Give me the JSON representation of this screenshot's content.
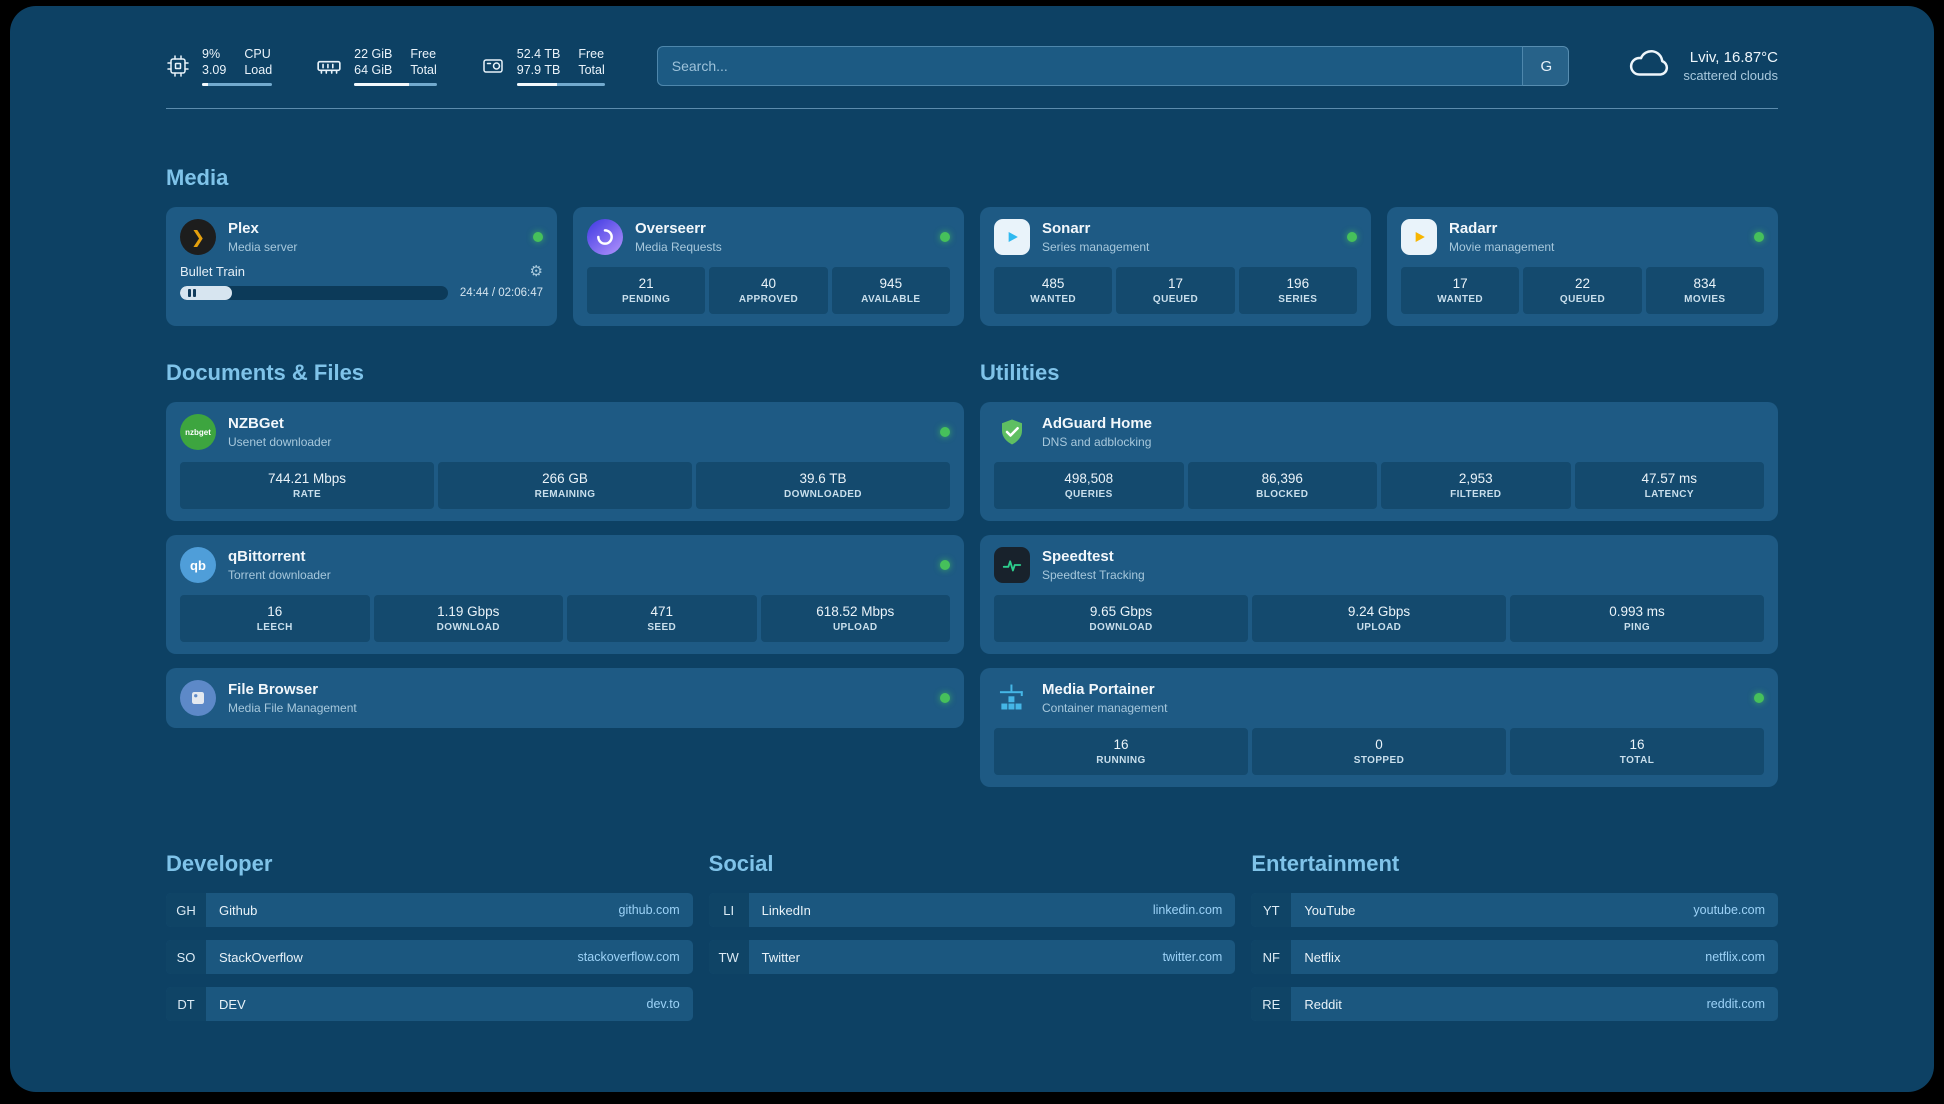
{
  "icons": {
    "gear": "⚙",
    "plex_glyph": "❯"
  },
  "topbar": {
    "cpu": {
      "percent": "9%",
      "load": "3.09",
      "label_top": "CPU",
      "label_bottom": "Load",
      "bar": "9%"
    },
    "ram": {
      "free": "22 GiB",
      "total": "64 GiB",
      "label_top": "Free",
      "label_bottom": "Total",
      "bar": "66%"
    },
    "disk": {
      "free": "52.4 TB",
      "total": "97.9 TB",
      "label_top": "Free",
      "label_bottom": "Total",
      "bar": "46%"
    },
    "search": {
      "placeholder": "Search...",
      "engine_label": "G"
    },
    "weather": {
      "location": "Lviv, 16.87°C",
      "description": "scattered clouds"
    }
  },
  "sections": {
    "media": "Media",
    "documents": "Documents & Files",
    "utilities": "Utilities",
    "developer": "Developer",
    "social": "Social",
    "entertainment": "Entertainment"
  },
  "media": {
    "plex": {
      "name": "Plex",
      "subtitle": "Media server",
      "now_playing": "Bullet Train",
      "time": "24:44 / 02:06:47",
      "progress": "19.5%"
    },
    "overseerr": {
      "name": "Overseerr",
      "subtitle": "Media Requests",
      "stats": [
        {
          "value": "21",
          "label": "PENDING"
        },
        {
          "value": "40",
          "label": "APPROVED"
        },
        {
          "value": "945",
          "label": "AVAILABLE"
        }
      ]
    },
    "sonarr": {
      "name": "Sonarr",
      "subtitle": "Series management",
      "stats": [
        {
          "value": "485",
          "label": "WANTED"
        },
        {
          "value": "17",
          "label": "QUEUED"
        },
        {
          "value": "196",
          "label": "SERIES"
        }
      ]
    },
    "radarr": {
      "name": "Radarr",
      "subtitle": "Movie management",
      "stats": [
        {
          "value": "17",
          "label": "WANTED"
        },
        {
          "value": "22",
          "label": "QUEUED"
        },
        {
          "value": "834",
          "label": "MOVIES"
        }
      ]
    }
  },
  "documents": {
    "nzbget": {
      "name": "NZBGet",
      "subtitle": "Usenet downloader",
      "icon_text": "nzbget",
      "stats": [
        {
          "value": "744.21 Mbps",
          "label": "RATE"
        },
        {
          "value": "266 GB",
          "label": "REMAINING"
        },
        {
          "value": "39.6 TB",
          "label": "DOWNLOADED"
        }
      ]
    },
    "qbittorrent": {
      "name": "qBittorrent",
      "subtitle": "Torrent downloader",
      "icon_text": "qb",
      "stats": [
        {
          "value": "16",
          "label": "LEECH"
        },
        {
          "value": "1.19 Gbps",
          "label": "DOWNLOAD"
        },
        {
          "value": "471",
          "label": "SEED"
        },
        {
          "value": "618.52 Mbps",
          "label": "UPLOAD"
        }
      ]
    },
    "filebrowser": {
      "name": "File Browser",
      "subtitle": "Media File Management"
    }
  },
  "utilities": {
    "adguard": {
      "name": "AdGuard Home",
      "subtitle": "DNS and adblocking",
      "stats": [
        {
          "value": "498,508",
          "label": "QUERIES"
        },
        {
          "value": "86,396",
          "label": "BLOCKED"
        },
        {
          "value": "2,953",
          "label": "FILTERED"
        },
        {
          "value": "47.57 ms",
          "label": "LATENCY"
        }
      ]
    },
    "speedtest": {
      "name": "Speedtest",
      "subtitle": "Speedtest Tracking",
      "stats": [
        {
          "value": "9.65 Gbps",
          "label": "DOWNLOAD"
        },
        {
          "value": "9.24 Gbps",
          "label": "UPLOAD"
        },
        {
          "value": "0.993 ms",
          "label": "PING"
        }
      ]
    },
    "portainer": {
      "name": "Media Portainer",
      "subtitle": "Container management",
      "stats": [
        {
          "value": "16",
          "label": "RUNNING"
        },
        {
          "value": "0",
          "label": "STOPPED"
        },
        {
          "value": "16",
          "label": "TOTAL"
        }
      ]
    }
  },
  "bookmarks": {
    "developer": [
      {
        "abbr": "GH",
        "name": "Github",
        "url": "github.com"
      },
      {
        "abbr": "SO",
        "name": "StackOverflow",
        "url": "stackoverflow.com"
      },
      {
        "abbr": "DT",
        "name": "DEV",
        "url": "dev.to"
      }
    ],
    "social": [
      {
        "abbr": "LI",
        "name": "LinkedIn",
        "url": "linkedin.com"
      },
      {
        "abbr": "TW",
        "name": "Twitter",
        "url": "twitter.com"
      }
    ],
    "entertainment": [
      {
        "abbr": "YT",
        "name": "YouTube",
        "url": "youtube.com"
      },
      {
        "abbr": "NF",
        "name": "Netflix",
        "url": "netflix.com"
      },
      {
        "abbr": "RE",
        "name": "Reddit",
        "url": "reddit.com"
      }
    ]
  }
}
